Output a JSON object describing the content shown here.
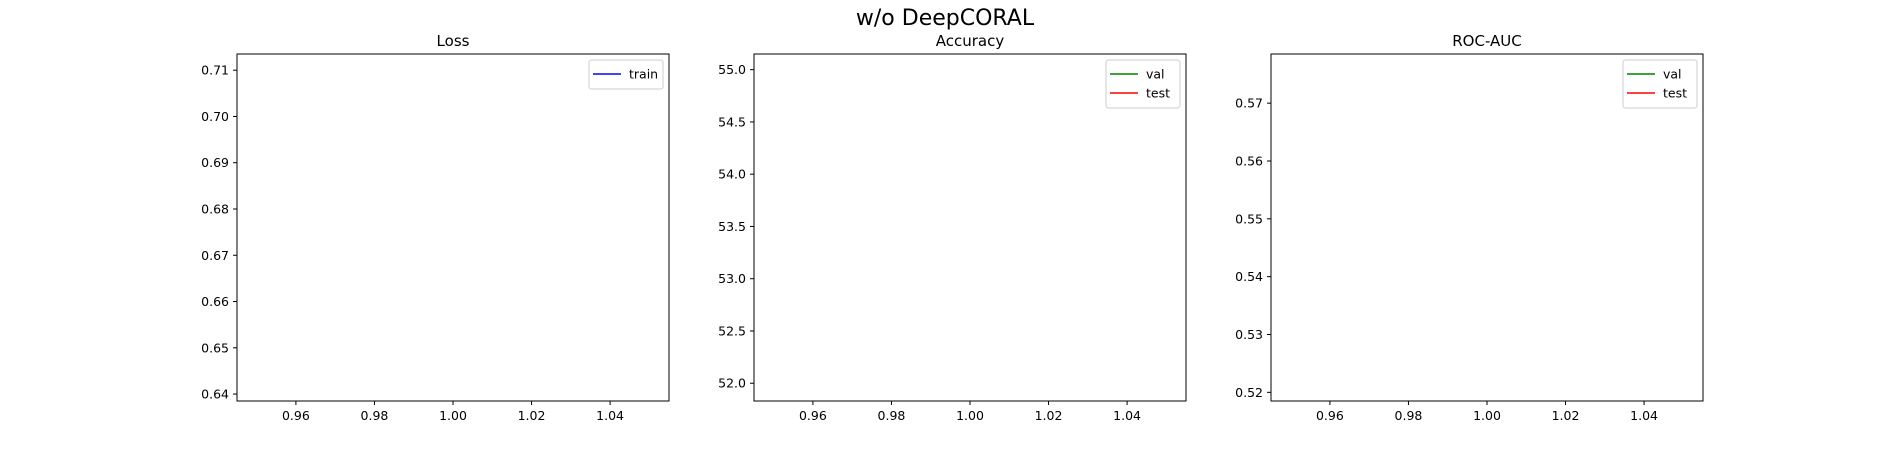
{
  "figure": {
    "suptitle": "w/o DeepCORAL"
  },
  "chart_data": [
    {
      "type": "line",
      "title": "Loss",
      "xlabel": "",
      "ylabel": "",
      "xlim": [
        0.945,
        1.055
      ],
      "ylim": [
        0.6385,
        0.7135
      ],
      "xticks": [
        0.96,
        0.98,
        1.0,
        1.02,
        1.04
      ],
      "xtick_labels": [
        "0.96",
        "0.98",
        "1.00",
        "1.02",
        "1.04"
      ],
      "yticks": [
        0.64,
        0.65,
        0.66,
        0.67,
        0.68,
        0.69,
        0.7,
        0.71
      ],
      "ytick_labels": [
        "0.64",
        "0.65",
        "0.66",
        "0.67",
        "0.68",
        "0.69",
        "0.70",
        "0.71"
      ],
      "grid": false,
      "legend_position": "top-right",
      "series": [
        {
          "name": "train",
          "color": "#0000ff",
          "points": []
        }
      ]
    },
    {
      "type": "line",
      "title": "Accuracy",
      "xlabel": "",
      "ylabel": "",
      "xlim": [
        0.945,
        1.055
      ],
      "ylim": [
        51.83,
        55.15
      ],
      "xticks": [
        0.96,
        0.98,
        1.0,
        1.02,
        1.04
      ],
      "xtick_labels": [
        "0.96",
        "0.98",
        "1.00",
        "1.02",
        "1.04"
      ],
      "yticks": [
        52.0,
        52.5,
        53.0,
        53.5,
        54.0,
        54.5,
        55.0
      ],
      "ytick_labels": [
        "52.0",
        "52.5",
        "53.0",
        "53.5",
        "54.0",
        "54.5",
        "55.0"
      ],
      "grid": false,
      "legend_position": "top-right",
      "series": [
        {
          "name": "val",
          "color": "#008000",
          "points": []
        },
        {
          "name": "test",
          "color": "#ff0000",
          "points": []
        }
      ]
    },
    {
      "type": "line",
      "title": "ROC-AUC",
      "xlabel": "",
      "ylabel": "",
      "xlim": [
        0.945,
        1.055
      ],
      "ylim": [
        0.5185,
        0.5785
      ],
      "xticks": [
        0.96,
        0.98,
        1.0,
        1.02,
        1.04
      ],
      "xtick_labels": [
        "0.96",
        "0.98",
        "1.00",
        "1.02",
        "1.04"
      ],
      "yticks": [
        0.52,
        0.53,
        0.54,
        0.55,
        0.56,
        0.57
      ],
      "ytick_labels": [
        "0.52",
        "0.53",
        "0.54",
        "0.55",
        "0.56",
        "0.57"
      ],
      "grid": false,
      "legend_position": "top-right",
      "series": [
        {
          "name": "val",
          "color": "#008000",
          "points": []
        },
        {
          "name": "test",
          "color": "#ff0000",
          "points": []
        }
      ]
    }
  ]
}
